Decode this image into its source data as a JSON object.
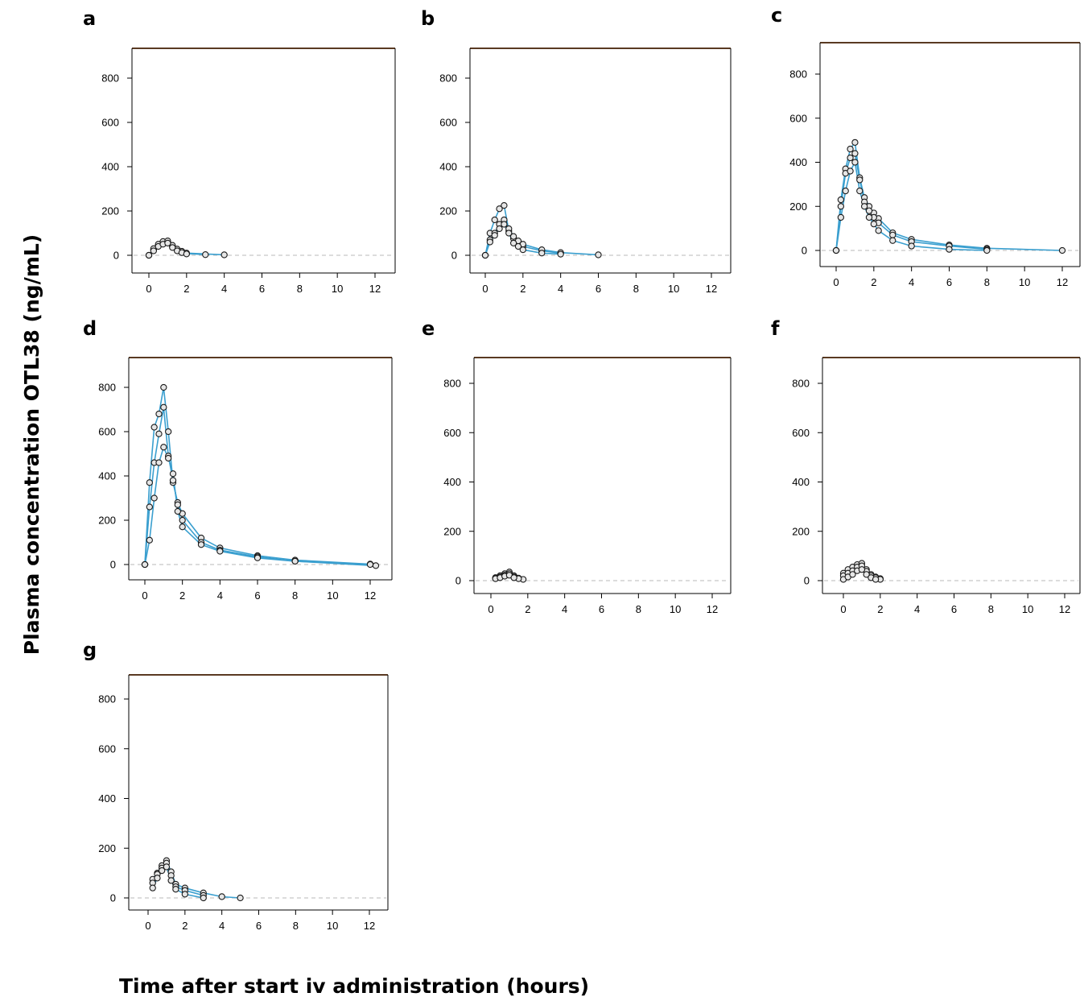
{
  "figure": {
    "ylabel": "Plasma concentration OTL38 (ng/mL)",
    "xlabel": "Time after start iv administration (hours)"
  },
  "style": {
    "line_color": "#3a9fcf",
    "marker_fill": "#e6e6e6",
    "marker_edge": "#1a1a1a",
    "zero_line_color": "#c8c8c8",
    "frame_top_color": "#5a3a22"
  },
  "chart_data": [
    {
      "panel": "a",
      "type": "line",
      "xlim": [
        -1,
        13
      ],
      "ylim": [
        -50,
        930
      ],
      "xticks": [
        "0",
        "2",
        "4",
        "6",
        "8",
        "10",
        "12"
      ],
      "yticks": [
        "0",
        "200",
        "400",
        "600",
        "800"
      ],
      "series": [
        {
          "x": [
            0,
            0.25,
            0.5,
            0.75,
            1,
            1.25,
            1.5,
            1.75,
            2,
            3
          ],
          "y": [
            0,
            25,
            45,
            55,
            60,
            40,
            25,
            15,
            8,
            3
          ]
        },
        {
          "x": [
            0,
            0.25,
            0.5,
            0.75,
            1,
            1.25,
            1.5,
            1.75,
            2,
            4
          ],
          "y": [
            0,
            30,
            50,
            62,
            65,
            45,
            28,
            18,
            10,
            2
          ]
        },
        {
          "x": [
            0,
            0.25,
            0.5,
            0.75,
            1,
            1.25,
            1.5,
            1.75,
            2
          ],
          "y": [
            0,
            20,
            40,
            50,
            55,
            35,
            20,
            12,
            6
          ]
        }
      ]
    },
    {
      "panel": "b",
      "type": "line",
      "xlim": [
        -1,
        13
      ],
      "ylim": [
        -50,
        930
      ],
      "xticks": [
        "0",
        "2",
        "4",
        "6",
        "8",
        "10",
        "12"
      ],
      "yticks": [
        "0",
        "200",
        "400",
        "600",
        "800"
      ],
      "series": [
        {
          "x": [
            0,
            0.25,
            0.5,
            0.75,
            1,
            1.25,
            1.5,
            1.75,
            2,
            3,
            4
          ],
          "y": [
            0,
            100,
            160,
            210,
            225,
            110,
            75,
            55,
            40,
            20,
            10
          ]
        },
        {
          "x": [
            0,
            0.25,
            0.5,
            0.75,
            1,
            1.25,
            1.5,
            1.75,
            2,
            3,
            4,
            6
          ],
          "y": [
            0,
            70,
            100,
            140,
            160,
            120,
            85,
            65,
            50,
            25,
            12,
            2
          ]
        },
        {
          "x": [
            0,
            0.25,
            0.5,
            0.75,
            1,
            1.25,
            1.5,
            1.75,
            2,
            3,
            4
          ],
          "y": [
            0,
            60,
            90,
            120,
            140,
            100,
            55,
            40,
            25,
            10,
            5
          ]
        }
      ]
    },
    {
      "panel": "c",
      "type": "line",
      "xlim": [
        -1,
        13
      ],
      "ylim": [
        -50,
        930
      ],
      "xticks": [
        "0",
        "2",
        "4",
        "6",
        "8",
        "10",
        "12"
      ],
      "yticks": [
        "0",
        "200",
        "400",
        "600",
        "800"
      ],
      "series": [
        {
          "x": [
            0,
            0.25,
            0.5,
            0.75,
            1,
            1.25,
            1.5,
            1.75,
            2,
            2.25,
            3,
            4,
            6,
            8,
            12
          ],
          "y": [
            0,
            230,
            370,
            460,
            490,
            330,
            240,
            200,
            170,
            145,
            80,
            50,
            25,
            10,
            0
          ]
        },
        {
          "x": [
            0,
            0.25,
            0.5,
            0.75,
            1,
            1.25,
            1.5,
            1.75,
            2,
            2.25,
            3,
            4,
            6,
            8
          ],
          "y": [
            0,
            200,
            350,
            420,
            440,
            320,
            220,
            180,
            150,
            125,
            70,
            40,
            20,
            5
          ]
        },
        {
          "x": [
            0,
            0.25,
            0.5,
            0.75,
            1,
            1.25,
            1.5,
            1.75,
            2,
            2.25,
            3,
            4,
            6,
            8
          ],
          "y": [
            0,
            150,
            270,
            360,
            400,
            270,
            200,
            150,
            120,
            90,
            45,
            20,
            5,
            0
          ]
        }
      ]
    },
    {
      "panel": "d",
      "type": "line",
      "xlim": [
        -1,
        13
      ],
      "ylim": [
        -50,
        930
      ],
      "xticks": [
        "0",
        "2",
        "4",
        "6",
        "8",
        "10",
        "12"
      ],
      "yticks": [
        "0",
        "200",
        "400",
        "600",
        "800"
      ],
      "series": [
        {
          "x": [
            0,
            0.25,
            0.5,
            0.75,
            1,
            1.25,
            1.5,
            1.75,
            2,
            3,
            4,
            6,
            8,
            12
          ],
          "y": [
            0,
            370,
            620,
            680,
            800,
            600,
            370,
            280,
            230,
            120,
            75,
            40,
            20,
            2
          ]
        },
        {
          "x": [
            0,
            0.25,
            0.5,
            0.75,
            1,
            1.25,
            1.5,
            1.75,
            2,
            3,
            4,
            6,
            8,
            12
          ],
          "y": [
            0,
            260,
            460,
            590,
            710,
            490,
            380,
            270,
            200,
            100,
            65,
            35,
            15,
            0
          ]
        },
        {
          "x": [
            0,
            0.25,
            0.5,
            0.75,
            1,
            1.25,
            1.5,
            1.75,
            2,
            3,
            4,
            6,
            8,
            12.3
          ],
          "y": [
            0,
            110,
            300,
            460,
            530,
            480,
            410,
            240,
            170,
            90,
            60,
            30,
            15,
            -5
          ]
        }
      ]
    },
    {
      "panel": "e",
      "type": "line",
      "xlim": [
        -1,
        13
      ],
      "ylim": [
        -50,
        900
      ],
      "xticks": [
        "0",
        "2",
        "4",
        "6",
        "8",
        "10",
        "12"
      ],
      "yticks": [
        "0",
        "200",
        "400",
        "600",
        "800"
      ],
      "series": [
        {
          "x": [
            0.25,
            0.5,
            0.75,
            1,
            1.25,
            1.5,
            1.75
          ],
          "y": [
            12,
            20,
            28,
            35,
            20,
            10,
            5
          ]
        },
        {
          "x": [
            0.25,
            0.5,
            0.75,
            1,
            1.25,
            1.5
          ],
          "y": [
            10,
            15,
            22,
            28,
            15,
            8
          ]
        },
        {
          "x": [
            0.25,
            0.5,
            0.75,
            1,
            1.25
          ],
          "y": [
            8,
            12,
            18,
            22,
            12
          ]
        }
      ]
    },
    {
      "panel": "f",
      "type": "line",
      "xlim": [
        -1,
        13
      ],
      "ylim": [
        -50,
        900
      ],
      "xticks": [
        "0",
        "2",
        "4",
        "6",
        "8",
        "10",
        "12"
      ],
      "yticks": [
        "0",
        "200",
        "400",
        "600",
        "800"
      ],
      "series": [
        {
          "x": [
            0,
            0.25,
            0.5,
            0.75,
            1,
            1.25,
            1.5,
            1.75,
            2
          ],
          "y": [
            30,
            45,
            55,
            65,
            70,
            45,
            25,
            15,
            8
          ]
        },
        {
          "x": [
            0,
            0.25,
            0.5,
            0.75,
            1,
            1.25,
            1.5,
            1.75,
            2
          ],
          "y": [
            20,
            30,
            40,
            55,
            60,
            38,
            20,
            12,
            5
          ]
        },
        {
          "x": [
            0,
            0.25,
            0.5,
            0.75,
            1,
            1.25,
            1.5,
            1.75
          ],
          "y": [
            5,
            15,
            25,
            40,
            45,
            25,
            12,
            5
          ]
        }
      ]
    },
    {
      "panel": "g",
      "type": "line",
      "xlim": [
        -1,
        13
      ],
      "ylim": [
        -50,
        900
      ],
      "xticks": [
        "0",
        "2",
        "4",
        "6",
        "8",
        "10",
        "12"
      ],
      "yticks": [
        "0",
        "200",
        "400",
        "600",
        "800"
      ],
      "series": [
        {
          "x": [
            0.25,
            0.5,
            0.75,
            1,
            1.25,
            1.5,
            2,
            3,
            4,
            5
          ],
          "y": [
            75,
            100,
            130,
            150,
            105,
            55,
            40,
            20,
            5,
            0
          ]
        },
        {
          "x": [
            0.25,
            0.5,
            0.75,
            1,
            1.25,
            1.5,
            2,
            3
          ],
          "y": [
            60,
            95,
            120,
            140,
            90,
            45,
            30,
            10
          ]
        },
        {
          "x": [
            0.25,
            0.5,
            0.75,
            1,
            1.25,
            1.5,
            2,
            3
          ],
          "y": [
            40,
            80,
            110,
            125,
            70,
            35,
            15,
            0
          ]
        }
      ]
    }
  ]
}
